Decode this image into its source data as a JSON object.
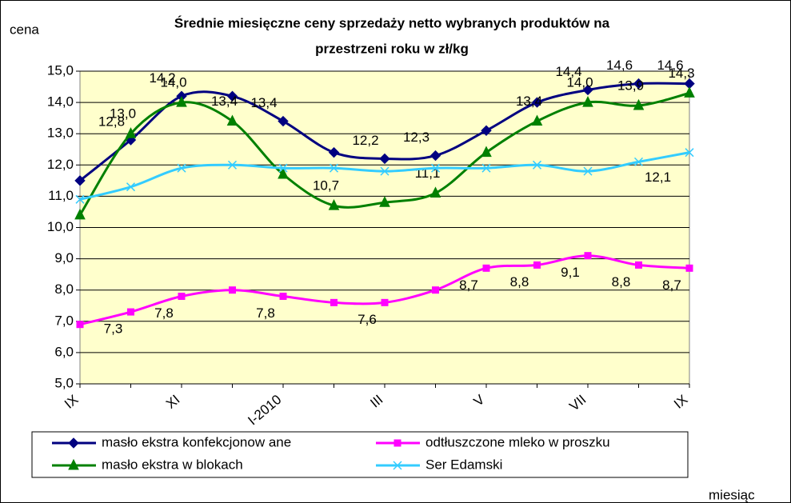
{
  "chart_data": {
    "type": "line",
    "title": [
      "Średnie miesięczne ceny sprzedaży netto  wybranych produktów na",
      "przestrzeni roku w zł/kg"
    ],
    "y_label": "cena",
    "x_label": "miesiąc",
    "categories": [
      "IX",
      null,
      "XI",
      null,
      "I-2010",
      null,
      "III",
      null,
      "V",
      null,
      "VII",
      null,
      "IX"
    ],
    "ylim": [
      5,
      15
    ],
    "yticks": [
      {
        "value": 5,
        "label": "5,0"
      },
      {
        "value": 6,
        "label": "6,0"
      },
      {
        "value": 7,
        "label": "7,0"
      },
      {
        "value": 8,
        "label": "8,0"
      },
      {
        "value": 9,
        "label": "9,0"
      },
      {
        "value": 10,
        "label": "10,0"
      },
      {
        "value": 11,
        "label": "11,0"
      },
      {
        "value": 12,
        "label": "12,0"
      },
      {
        "value": 13,
        "label": "13,0"
      },
      {
        "value": 14,
        "label": "14,0"
      },
      {
        "value": 15,
        "label": "15,0"
      }
    ],
    "grid": true,
    "series": [
      {
        "name": "masło ekstra konfekcjonow ane",
        "color": "#000080",
        "marker": "diamond",
        "values": [
          11.5,
          12.8,
          14.2,
          14.2,
          13.4,
          12.4,
          12.2,
          12.3,
          13.1,
          14.0,
          14.4,
          14.6,
          14.6
        ],
        "value_labels": [
          null,
          "12,8",
          "14,2",
          null,
          "13,4",
          null,
          "12,2",
          "12,3",
          null,
          null,
          "14,4",
          "14,6",
          "14,6"
        ]
      },
      {
        "name": "odtłuszczone mleko w  proszku",
        "color": "#ff00ff",
        "marker": "square",
        "values": [
          6.9,
          7.3,
          7.8,
          8.0,
          7.8,
          7.6,
          7.6,
          8.0,
          8.7,
          8.8,
          9.1,
          8.8,
          8.7
        ],
        "value_labels": [
          null,
          "7,3",
          "7,8",
          null,
          "7,8",
          null,
          "7,6",
          null,
          "8,7",
          "8,8",
          "9,1",
          "8,8",
          "8,7"
        ]
      },
      {
        "name": "masło ekstra w  blokach",
        "color": "#008000",
        "marker": "triangle",
        "values": [
          10.4,
          13.0,
          14.0,
          13.4,
          11.7,
          10.7,
          10.8,
          11.1,
          12.4,
          13.4,
          14.0,
          13.9,
          14.3
        ],
        "value_labels": [
          null,
          "13,0",
          "14,0",
          "13,4",
          null,
          "10,7",
          null,
          "11,1",
          null,
          "13,4",
          "14,0",
          "13,9",
          "14,3"
        ]
      },
      {
        "name": "Ser Edamski",
        "color": "#33ccff",
        "marker": "x",
        "values": [
          10.9,
          11.3,
          11.9,
          12.0,
          11.9,
          11.9,
          11.8,
          11.9,
          11.9,
          12.0,
          11.8,
          12.1,
          12.4
        ],
        "value_labels": [
          null,
          null,
          null,
          null,
          null,
          null,
          null,
          null,
          null,
          null,
          null,
          "12,1",
          null
        ]
      }
    ]
  }
}
